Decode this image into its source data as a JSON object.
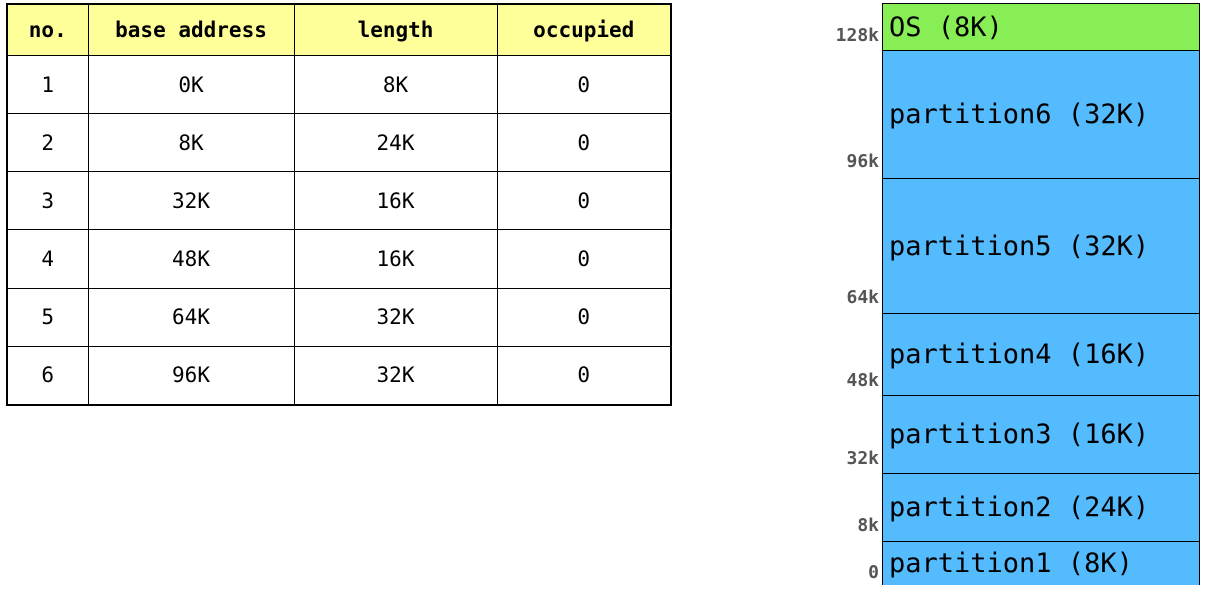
{
  "table": {
    "headers": [
      "no.",
      "base address",
      "length",
      "occupied"
    ],
    "rows": [
      [
        "1",
        "0K",
        "8K",
        "0"
      ],
      [
        "2",
        "8K",
        "24K",
        "0"
      ],
      [
        "3",
        "32K",
        "16K",
        "0"
      ],
      [
        "4",
        "48K",
        "16K",
        "0"
      ],
      [
        "5",
        "64K",
        "32K",
        "0"
      ],
      [
        "6",
        "96K",
        "32K",
        "0"
      ]
    ]
  },
  "memory": {
    "blocks": [
      {
        "label": "OS (8K)",
        "color": "#88ee55"
      },
      {
        "label": "partition6 (32K)",
        "color": "#55bbff"
      },
      {
        "label": "partition5 (32K)",
        "color": "#55bbff"
      },
      {
        "label": "partition4 (16K)",
        "color": "#55bbff"
      },
      {
        "label": "partition3 (16K)",
        "color": "#55bbff"
      },
      {
        "label": "partition2 (24K)",
        "color": "#55bbff"
      },
      {
        "label": "partition1 (8K)",
        "color": "#55bbff"
      }
    ],
    "addresses": [
      "128k",
      "96k",
      "64k",
      "48k",
      "32k",
      "8k",
      "0"
    ]
  }
}
